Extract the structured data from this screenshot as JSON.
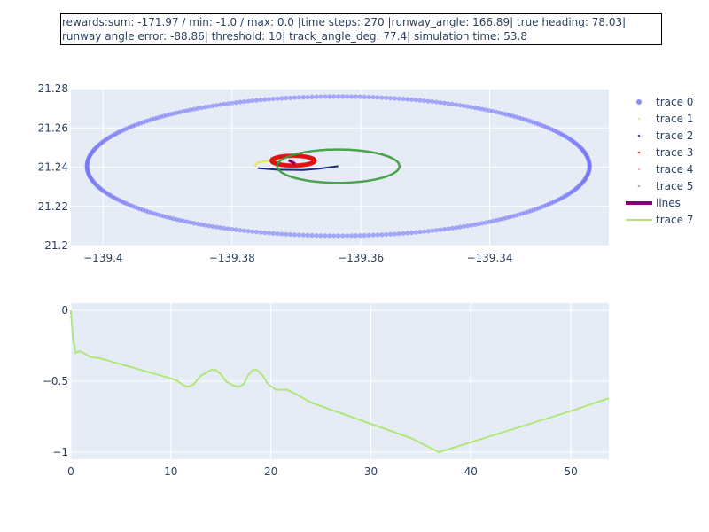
{
  "info": {
    "line1": "rewards:sum: -171.97 / min: -1.0 / max: 0.0 |time steps: 270 |runway_angle:  166.89| true heading:  78.03|",
    "line2": "runway angle error:  -88.86| threshold:  10| track_angle_deg:  77.4| simulation time: 53.8"
  },
  "chart_data": [
    {
      "type": "scatter",
      "xlim": [
        -139.405,
        -139.3215
      ],
      "ylim": [
        21.2,
        21.28
      ],
      "xticks": [
        -139.4,
        -139.38,
        -139.36,
        -139.34
      ],
      "xtick_labels": [
        "−139.4",
        "−139.38",
        "−139.36",
        "−139.34"
      ],
      "yticks": [
        21.2,
        21.22,
        21.24,
        21.26,
        21.28
      ],
      "ytick_labels": [
        "21.2",
        "21.22",
        "21.24",
        "21.26",
        "21.28"
      ],
      "grid": true,
      "legend_position": "right",
      "series": [
        {
          "name": "trace 0",
          "mode": "markers",
          "color": "#6f6ff5",
          "shape": "ellipse",
          "center": [
            -139.3635,
            21.2405
          ],
          "radii": [
            0.039,
            0.0355
          ],
          "points": 360
        },
        {
          "name": "trace 1",
          "mode": "markers",
          "color": "#e8e84a",
          "shape": "arc",
          "points_xy": [
            [
              -139.3765,
              21.2405
            ],
            [
              -139.376,
              21.2423
            ],
            [
              -139.3745,
              21.2432
            ],
            [
              -139.373,
              21.2432
            ]
          ]
        },
        {
          "name": "trace 2",
          "mode": "markers",
          "color": "#1a2a80",
          "shape": "arc",
          "points_xy": [
            [
              -139.376,
              21.2395
            ],
            [
              -139.373,
              21.2387
            ],
            [
              -139.369,
              21.2385
            ],
            [
              -139.3665,
              21.2392
            ],
            [
              -139.3635,
              21.2405
            ]
          ]
        },
        {
          "name": "trace 3",
          "mode": "markers",
          "color": "#e01010",
          "shape": "ellipse",
          "center": [
            -139.3705,
            21.2433
          ],
          "radii": [
            0.0033,
            0.0025
          ],
          "points": 120
        },
        {
          "name": "trace 4",
          "mode": "markers",
          "color": "#f4a0a0",
          "shape": "none"
        },
        {
          "name": "trace 5",
          "mode": "markers",
          "color": "#9aa0c8",
          "shape": "none"
        },
        {
          "name": "lines",
          "mode": "lines",
          "color": "#800080",
          "shape": "segment",
          "points_xy": [
            [
              -139.3712,
              21.2435
            ],
            [
              -139.3702,
              21.2418
            ]
          ]
        },
        {
          "name": "trace 7",
          "mode": "lines",
          "color": "#3a9a3a",
          "legend_color": "#b2e67a",
          "shape": "ellipse",
          "center": [
            -139.3635,
            21.2405
          ],
          "radii": [
            0.0095,
            0.0085
          ],
          "points": 200
        }
      ]
    },
    {
      "type": "line",
      "xlim": [
        0,
        53.8
      ],
      "ylim": [
        -1.05,
        0.05
      ],
      "xticks": [
        0,
        10,
        20,
        30,
        40,
        50
      ],
      "xtick_labels": [
        "0",
        "10",
        "20",
        "30",
        "40",
        "50"
      ],
      "yticks": [
        0,
        -0.5,
        -1
      ],
      "ytick_labels": [
        "0",
        "−0.5",
        "−1"
      ],
      "grid": true,
      "series": [
        {
          "name": "trace 7",
          "color": "#b2e67a",
          "x": [
            0,
            0.2,
            0.5,
            0.8,
            1.0,
            1.5,
            2.0,
            3.0,
            4.0,
            6.0,
            8.0,
            10.0,
            10.7,
            11.3,
            11.7,
            12.3,
            13.0,
            14.0,
            14.5,
            15.0,
            15.5,
            16.2,
            16.8,
            17.3,
            17.7,
            18.2,
            18.6,
            19.2,
            19.7,
            20.5,
            21.6,
            22.5,
            24.0,
            26.0,
            28.0,
            30.0,
            32.0,
            34.0,
            36.8,
            40.0,
            45.0,
            50.0,
            53.8
          ],
          "y": [
            0.0,
            -0.2,
            -0.3,
            -0.29,
            -0.29,
            -0.31,
            -0.33,
            -0.34,
            -0.36,
            -0.4,
            -0.44,
            -0.48,
            -0.5,
            -0.53,
            -0.54,
            -0.52,
            -0.46,
            -0.42,
            -0.42,
            -0.45,
            -0.5,
            -0.53,
            -0.54,
            -0.52,
            -0.46,
            -0.42,
            -0.42,
            -0.46,
            -0.52,
            -0.56,
            -0.56,
            -0.59,
            -0.65,
            -0.7,
            -0.75,
            -0.8,
            -0.85,
            -0.9,
            -1.0,
            -0.93,
            -0.82,
            -0.71,
            -0.62
          ]
        }
      ]
    }
  ]
}
